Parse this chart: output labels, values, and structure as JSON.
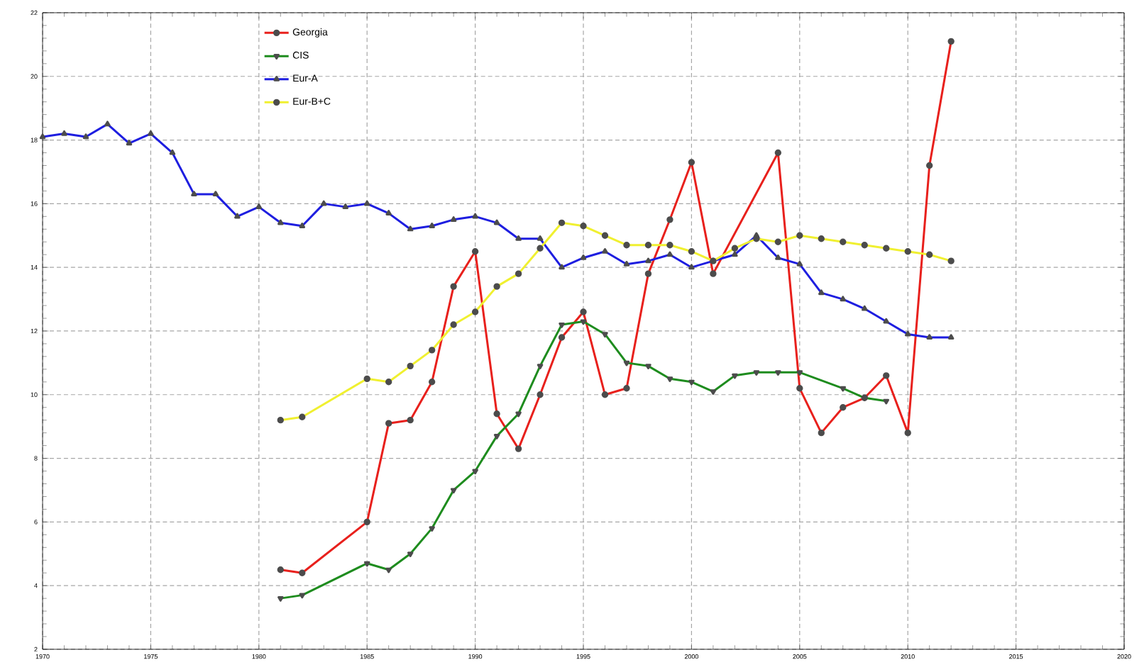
{
  "chart_data": {
    "type": "line",
    "xlim": [
      1970,
      2020
    ],
    "xticks": [
      1970,
      1975,
      1980,
      1985,
      1990,
      1995,
      2000,
      2005,
      2010,
      2015,
      2020
    ],
    "ylim": [
      2,
      22
    ],
    "yticks": [
      2,
      4,
      6,
      8,
      10,
      12,
      14,
      16,
      18,
      20,
      22
    ],
    "grid": true,
    "legend": "top left",
    "line_style": "solid",
    "series": [
      {
        "name": "Georgia",
        "color": "#e8201c",
        "marker": "circle",
        "x": [
          1981,
          1982,
          1985,
          1986,
          1987,
          1988,
          1989,
          1990,
          1991,
          1992,
          1993,
          1994,
          1995,
          1996,
          1997,
          1998,
          1999,
          2000,
          2001,
          2004,
          2005,
          2006,
          2007,
          2008,
          2009,
          2010,
          2011,
          2012
        ],
        "values": [
          4.5,
          4.4,
          6.0,
          9.1,
          9.2,
          10.4,
          13.4,
          14.5,
          9.4,
          8.3,
          10.0,
          11.8,
          12.6,
          10.0,
          10.2,
          13.8,
          15.5,
          17.3,
          13.8,
          17.6,
          10.2,
          8.8,
          9.6,
          9.9,
          10.6,
          8.8,
          17.2,
          21.1
        ]
      },
      {
        "name": "CIS",
        "color": "#1e8c1e",
        "marker": "triangle down",
        "x": [
          1981,
          1982,
          1985,
          1986,
          1987,
          1988,
          1989,
          1990,
          1991,
          1992,
          1993,
          1994,
          1995,
          1996,
          1997,
          1998,
          1999,
          2000,
          2001,
          2002,
          2003,
          2004,
          2005,
          2007,
          2008,
          2009
        ],
        "values": [
          3.6,
          3.7,
          4.7,
          4.5,
          5.0,
          5.8,
          7.0,
          7.6,
          8.7,
          9.4,
          10.9,
          12.2,
          12.3,
          11.9,
          11.0,
          10.9,
          10.5,
          10.4,
          10.1,
          10.6,
          10.7,
          10.7,
          10.7,
          10.2,
          9.9,
          9.8
        ]
      },
      {
        "name": "Eur-A",
        "color": "#1e1ee0",
        "marker": "triangle",
        "x": [
          1970,
          1971,
          1972,
          1973,
          1974,
          1975,
          1976,
          1977,
          1978,
          1979,
          1980,
          1981,
          1982,
          1983,
          1984,
          1985,
          1986,
          1987,
          1988,
          1989,
          1990,
          1991,
          1992,
          1993,
          1994,
          1995,
          1996,
          1997,
          1998,
          1999,
          2000,
          2001,
          2002,
          2003,
          2004,
          2005,
          2006,
          2007,
          2008,
          2009,
          2010,
          2011,
          2012
        ],
        "values": [
          18.1,
          18.2,
          18.1,
          18.5,
          17.9,
          18.2,
          17.6,
          16.3,
          16.3,
          15.6,
          15.9,
          15.4,
          15.3,
          16.0,
          15.9,
          16.0,
          15.7,
          15.2,
          15.3,
          15.5,
          15.6,
          15.4,
          14.9,
          14.9,
          14.0,
          14.3,
          14.5,
          14.1,
          14.2,
          14.4,
          14.0,
          14.2,
          14.4,
          15.0,
          14.3,
          14.1,
          13.2,
          13.0,
          12.7,
          12.3,
          11.9,
          11.8,
          11.8
        ]
      },
      {
        "name": "Eur-B+C",
        "color": "#f0f030",
        "marker": "circle",
        "x": [
          1981,
          1982,
          1985,
          1986,
          1987,
          1988,
          1989,
          1990,
          1991,
          1992,
          1993,
          1994,
          1995,
          1996,
          1997,
          1998,
          1999,
          2000,
          2001,
          2002,
          2003,
          2004,
          2005,
          2006,
          2007,
          2008,
          2009,
          2010,
          2011,
          2012
        ],
        "values": [
          9.2,
          9.3,
          10.5,
          10.4,
          10.9,
          11.4,
          12.2,
          12.6,
          13.4,
          13.8,
          14.6,
          15.4,
          15.3,
          15.0,
          14.7,
          14.7,
          14.7,
          14.5,
          14.2,
          14.6,
          14.9,
          14.8,
          15.0,
          14.9,
          14.8,
          14.7,
          14.6,
          14.5,
          14.4,
          14.2
        ]
      }
    ]
  }
}
